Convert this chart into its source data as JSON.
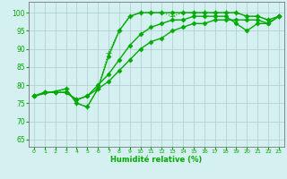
{
  "background_color": "#d5f0f0",
  "grid_color": "#aacccc",
  "line_color": "#00aa00",
  "marker_color": "#00aa00",
  "xlabel": "Humidité relative (%)",
  "xlabel_color": "#00aa00",
  "ylabel_color": "#00aa00",
  "xlim": [
    -0.5,
    23.5
  ],
  "ylim": [
    63,
    103
  ],
  "yticks": [
    65,
    70,
    75,
    80,
    85,
    90,
    95,
    100
  ],
  "xticks": [
    0,
    1,
    2,
    3,
    4,
    5,
    6,
    7,
    8,
    9,
    10,
    11,
    12,
    13,
    14,
    15,
    16,
    17,
    18,
    19,
    20,
    21,
    22,
    23
  ],
  "series": [
    {
      "x": [
        0,
        1,
        2,
        3,
        4,
        5,
        6,
        7,
        8,
        9,
        10,
        11,
        12,
        13,
        14,
        15,
        16,
        17,
        18,
        19,
        20,
        21,
        22,
        23
      ],
      "y": [
        77,
        78,
        78,
        79,
        75,
        74,
        79,
        89,
        95,
        99,
        100,
        100,
        100,
        99,
        100,
        100,
        100,
        100,
        100,
        100,
        99,
        99,
        98,
        99
      ],
      "marker": "+",
      "markersize": 4,
      "linewidth": 0.8,
      "linestyle": ":"
    },
    {
      "x": [
        0,
        3,
        4,
        5,
        6,
        7,
        8,
        9,
        10,
        11,
        12,
        13,
        14,
        15,
        16,
        17,
        18,
        19,
        20,
        21,
        22,
        23
      ],
      "y": [
        77,
        79,
        75,
        74,
        79,
        88,
        95,
        99,
        100,
        100,
        100,
        100,
        100,
        100,
        100,
        100,
        100,
        100,
        99,
        99,
        98,
        99
      ],
      "marker": "D",
      "markersize": 2.5,
      "linewidth": 1.0,
      "linestyle": "-"
    },
    {
      "x": [
        0,
        1,
        2,
        3,
        4,
        5,
        6,
        7,
        8,
        9,
        10,
        11,
        12,
        13,
        14,
        15,
        16,
        17,
        18,
        19,
        20,
        21,
        22,
        23
      ],
      "y": [
        77,
        78,
        78,
        78,
        76,
        77,
        79,
        81,
        84,
        87,
        90,
        92,
        93,
        95,
        96,
        97,
        97,
        98,
        98,
        98,
        98,
        98,
        97,
        99
      ],
      "marker": "D",
      "markersize": 2.5,
      "linewidth": 1.0,
      "linestyle": "-"
    },
    {
      "x": [
        0,
        1,
        2,
        3,
        4,
        5,
        6,
        7,
        8,
        9,
        10,
        11,
        12,
        13,
        14,
        15,
        16,
        17,
        18,
        19,
        20,
        21,
        22,
        23
      ],
      "y": [
        77,
        78,
        78,
        78,
        76,
        77,
        80,
        83,
        87,
        91,
        94,
        96,
        97,
        98,
        98,
        99,
        99,
        99,
        99,
        97,
        95,
        97,
        97,
        99
      ],
      "marker": "D",
      "markersize": 2.5,
      "linewidth": 1.0,
      "linestyle": "-"
    }
  ]
}
